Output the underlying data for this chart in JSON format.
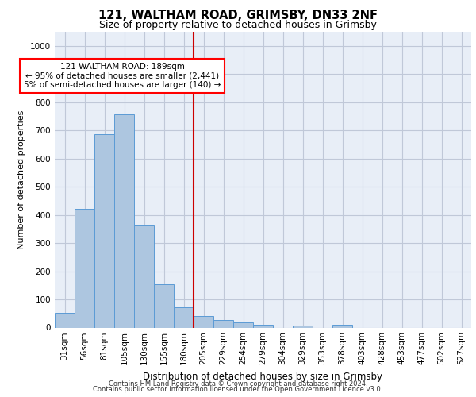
{
  "title_line1": "121, WALTHAM ROAD, GRIMSBY, DN33 2NF",
  "title_line2": "Size of property relative to detached houses in Grimsby",
  "xlabel": "Distribution of detached houses by size in Grimsby",
  "ylabel": "Number of detached properties",
  "footer_line1": "Contains HM Land Registry data © Crown copyright and database right 2024.",
  "footer_line2": "Contains public sector information licensed under the Open Government Licence v3.0.",
  "bar_labels": [
    "31sqm",
    "56sqm",
    "81sqm",
    "105sqm",
    "130sqm",
    "155sqm",
    "180sqm",
    "205sqm",
    "229sqm",
    "254sqm",
    "279sqm",
    "304sqm",
    "329sqm",
    "353sqm",
    "378sqm",
    "403sqm",
    "428sqm",
    "453sqm",
    "477sqm",
    "502sqm",
    "527sqm"
  ],
  "bar_values": [
    52,
    422,
    685,
    757,
    362,
    155,
    72,
    40,
    28,
    18,
    10,
    0,
    8,
    0,
    10,
    0,
    0,
    0,
    0,
    0,
    0
  ],
  "bar_color": "#adc6e0",
  "bar_edgecolor": "#5b9bd5",
  "ylim": [
    0,
    1050
  ],
  "yticks": [
    0,
    100,
    200,
    300,
    400,
    500,
    600,
    700,
    800,
    900,
    1000
  ],
  "vline_x": 6.5,
  "vline_color": "#cc0000",
  "annotation_text": "121 WALTHAM ROAD: 189sqm\n← 95% of detached houses are smaller (2,441)\n5% of semi-detached houses are larger (140) →",
  "background_color": "#ffffff",
  "plot_facecolor": "#e8eef7",
  "grid_color": "#c0c8d8",
  "title1_fontsize": 10.5,
  "title2_fontsize": 9,
  "ylabel_fontsize": 8,
  "xlabel_fontsize": 8.5,
  "tick_fontsize": 7.5,
  "annot_fontsize": 7.5,
  "footer_fontsize": 6
}
